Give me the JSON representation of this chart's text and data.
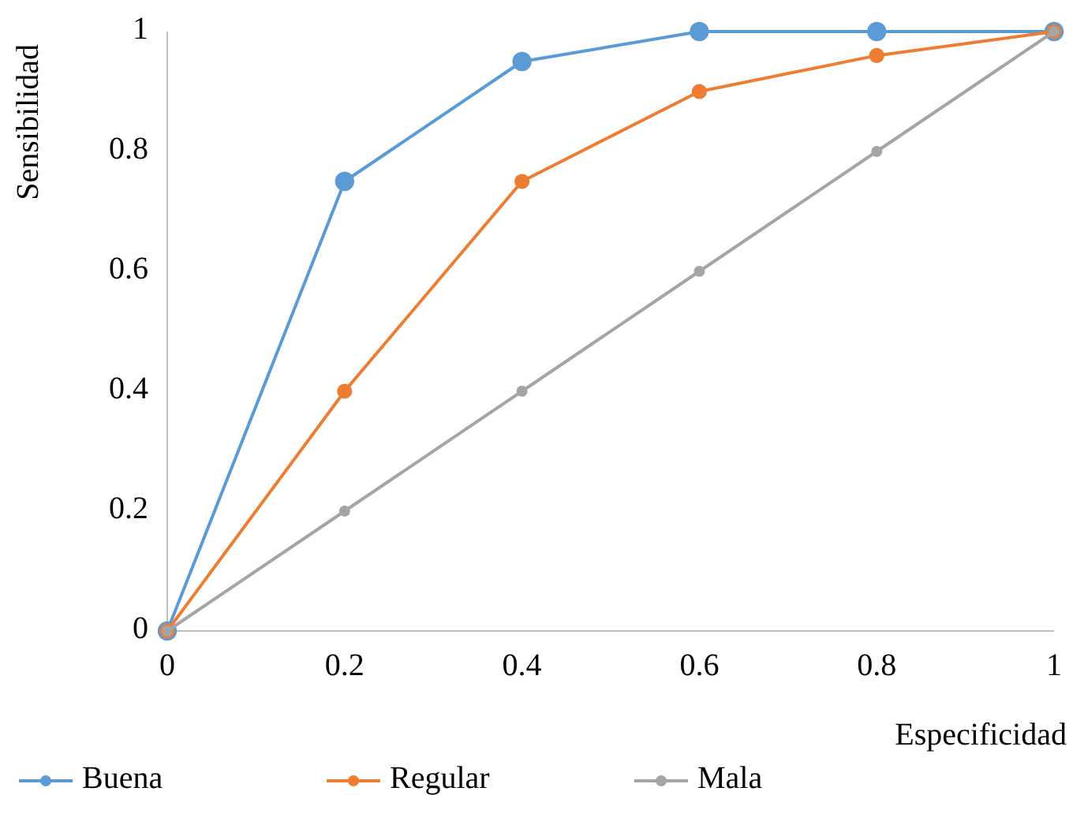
{
  "chart_data": {
    "type": "line",
    "xlabel": "Especificidad",
    "ylabel": "Sensibilidad",
    "x": [
      0,
      0.2,
      0.4,
      0.6,
      0.8,
      1
    ],
    "series": [
      {
        "name": "Buena",
        "color": "#5b9bd5",
        "values": [
          0,
          0.75,
          0.95,
          1,
          1,
          1
        ]
      },
      {
        "name": "Regular",
        "color": "#ed7d31",
        "values": [
          0,
          0.4,
          0.75,
          0.9,
          0.96,
          1
        ]
      },
      {
        "name": "Mala",
        "color": "#a5a5a5",
        "values": [
          0,
          0.2,
          0.4,
          0.6,
          0.8,
          1
        ]
      }
    ],
    "xlim": [
      0,
      1
    ],
    "xticks": [
      0,
      0.2,
      0.4,
      0.6,
      0.8,
      1
    ],
    "ylim": [
      0,
      1
    ],
    "yticks": [
      0,
      0.2,
      0.4,
      0.6,
      0.8,
      1
    ],
    "grid": false,
    "legend": "bottom",
    "marker": "circle",
    "line_style": "solid"
  }
}
